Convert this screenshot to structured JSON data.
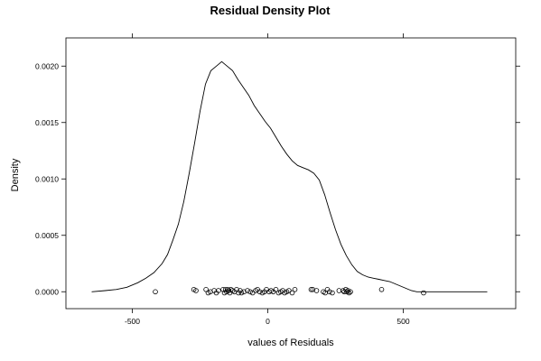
{
  "chart_data": {
    "type": "line",
    "title": "Residual Density Plot",
    "xlabel": "values of Residuals",
    "ylabel": "Density",
    "xlim": [
      -745,
      915
    ],
    "ylim": [
      -0.00015,
      0.00225
    ],
    "x_ticks": [
      -500,
      0,
      500
    ],
    "x_tick_labels": [
      "-500",
      "0",
      "500"
    ],
    "y_ticks": [
      0,
      0.0005,
      0.001,
      0.0015,
      0.002
    ],
    "y_tick_labels": [
      "0.0000",
      "0.0005",
      "0.0010",
      "0.0015",
      "0.0020"
    ],
    "grid": false,
    "series": [
      {
        "kind": "density",
        "x": [
          -650,
          -600,
          -560,
          -520,
          -480,
          -450,
          -420,
          -390,
          -370,
          -350,
          -330,
          -310,
          -290,
          -270,
          -250,
          -230,
          -210,
          -190,
          -170,
          -150,
          -130,
          -110,
          -90,
          -70,
          -50,
          -30,
          -10,
          10,
          30,
          50,
          70,
          90,
          110,
          130,
          150,
          170,
          190,
          210,
          230,
          250,
          270,
          290,
          310,
          330,
          350,
          370,
          390,
          410,
          430,
          450,
          470,
          490,
          510,
          530,
          550,
          580,
          620,
          660,
          700,
          740,
          780,
          810
        ],
        "y": [
          0.0,
          1e-05,
          2e-05,
          4e-05,
          8e-05,
          0.00012,
          0.00017,
          0.00025,
          0.00033,
          0.00046,
          0.0006,
          0.0008,
          0.00105,
          0.00132,
          0.0016,
          0.00184,
          0.00196,
          0.002,
          0.00204,
          0.002,
          0.00196,
          0.00188,
          0.00181,
          0.00174,
          0.00165,
          0.00158,
          0.00151,
          0.00145,
          0.00137,
          0.00129,
          0.00122,
          0.00116,
          0.00112,
          0.0011,
          0.00108,
          0.00105,
          0.00099,
          0.00086,
          0.0007,
          0.00055,
          0.00042,
          0.00032,
          0.00024,
          0.00018,
          0.00015,
          0.00013,
          0.00012,
          0.00011,
          0.0001,
          9e-05,
          7e-05,
          5e-05,
          3e-05,
          1e-05,
          0.0,
          0.0,
          0.0,
          0.0,
          0.0,
          0.0,
          0.0,
          0.0
        ]
      },
      {
        "kind": "rug",
        "x": [
          -415,
          -273,
          -265,
          -228,
          -220,
          -212,
          -198,
          -190,
          -182,
          -165,
          -160,
          -156,
          -152,
          -148,
          -144,
          -140,
          -136,
          -130,
          -123,
          -115,
          -108,
          -102,
          -97,
          -88,
          -75,
          -65,
          -56,
          -45,
          -38,
          -30,
          -20,
          -12,
          -5,
          5,
          12,
          20,
          30,
          40,
          48,
          55,
          62,
          70,
          78,
          90,
          100,
          160,
          166,
          180,
          205,
          212,
          220,
          228,
          238,
          263,
          278,
          282,
          288,
          292,
          296,
          300,
          305,
          420,
          575
        ],
        "y": [
          0.0,
          2e-05,
          1e-05,
          2e-05,
          -1e-05,
          0.0,
          1e-05,
          -1e-05,
          1e-05,
          2e-05,
          -1e-05,
          2e-05,
          0.0,
          2e-05,
          1e-05,
          -1e-05,
          2e-05,
          1e-05,
          0.0,
          2e-05,
          -1e-05,
          1e-05,
          -1e-05,
          0.0,
          1e-05,
          0.0,
          -1e-05,
          1e-05,
          2e-05,
          0.0,
          -1e-05,
          0.0,
          2e-05,
          0.0,
          1e-05,
          0.0,
          2e-05,
          -1e-05,
          0.0,
          1e-05,
          -1e-05,
          0.0,
          1e-05,
          -1e-05,
          2e-05,
          2e-05,
          2e-05,
          1e-05,
          0.0,
          -1e-05,
          2e-05,
          0.0,
          -1e-05,
          1e-05,
          1e-05,
          0.0,
          2e-05,
          0.0,
          1e-05,
          -1e-05,
          0.0,
          2e-05,
          -1e-05
        ]
      }
    ]
  }
}
